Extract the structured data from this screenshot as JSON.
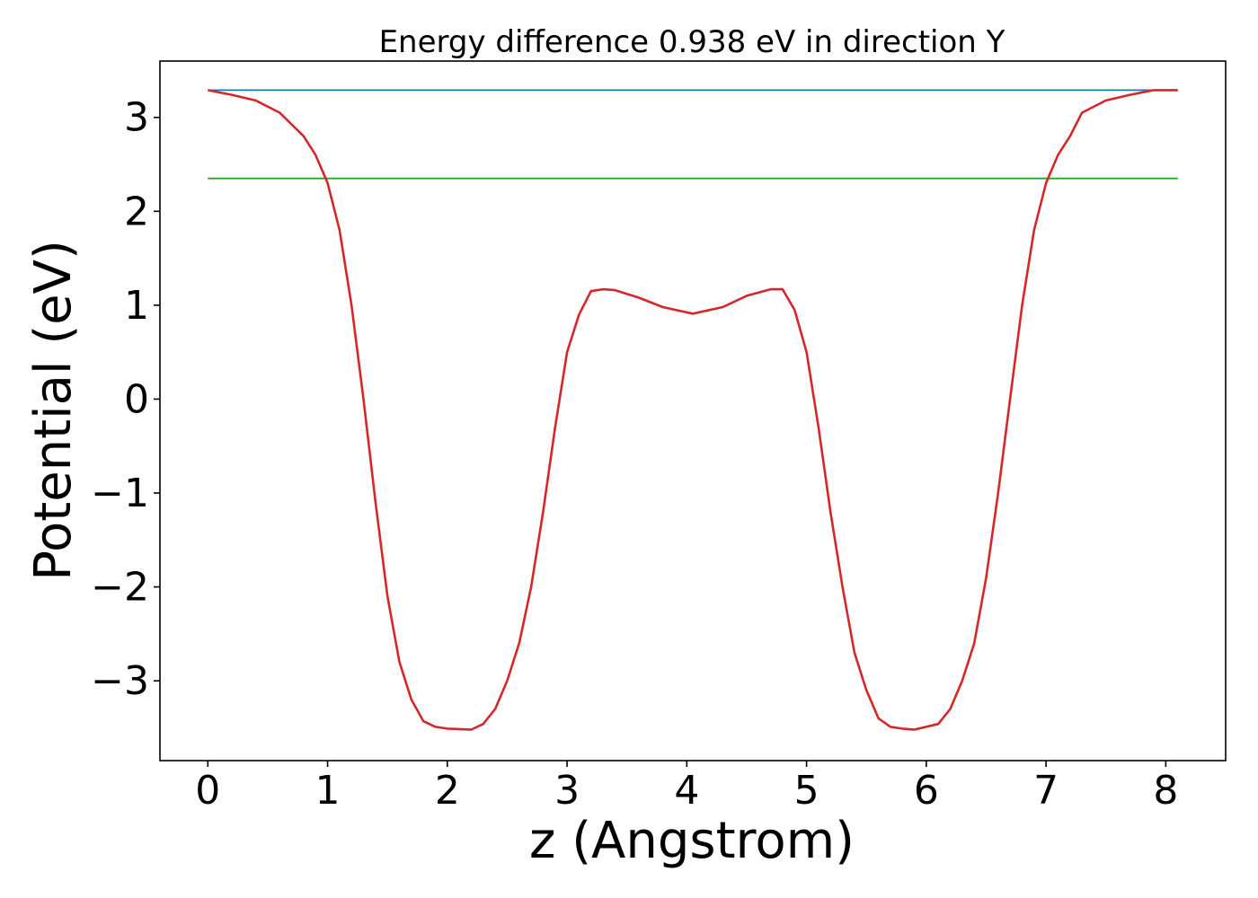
{
  "chart_data": {
    "type": "line",
    "title": "Energy difference 0.938 eV in direction Y",
    "xlabel": "z (Angstrom)",
    "ylabel": "Potential (eV)",
    "xlim": [
      -0.4,
      8.5
    ],
    "ylim": [
      -3.85,
      3.6
    ],
    "xticks": [
      0,
      1,
      2,
      3,
      4,
      5,
      6,
      7,
      8
    ],
    "xtick_labels": [
      "0",
      "1",
      "2",
      "3",
      "4",
      "5",
      "6",
      "7",
      "8"
    ],
    "yticks": [
      -3,
      -2,
      -1,
      0,
      1,
      2,
      3
    ],
    "ytick_labels": [
      "−3",
      "−2",
      "−1",
      "0",
      "1",
      "2",
      "3"
    ],
    "grid": false,
    "legend": "none",
    "series": [
      {
        "color": "#d62728",
        "x": [
          0,
          0.2,
          0.4,
          0.6,
          0.8,
          0.9,
          1.0,
          1.1,
          1.2,
          1.3,
          1.4,
          1.5,
          1.6,
          1.7,
          1.8,
          1.9,
          2.0,
          2.2,
          2.3,
          2.4,
          2.5,
          2.6,
          2.7,
          2.8,
          2.9,
          3.0,
          3.1,
          3.2,
          3.3,
          3.4,
          3.6,
          3.8,
          4.05,
          4.3,
          4.5,
          4.7,
          4.8,
          4.9,
          5.0,
          5.1,
          5.2,
          5.3,
          5.4,
          5.5,
          5.6,
          5.7,
          5.8,
          5.9,
          6.1,
          6.2,
          6.3,
          6.4,
          6.5,
          6.6,
          6.7,
          6.8,
          6.9,
          7.0,
          7.1,
          7.2,
          7.3,
          7.5,
          7.7,
          7.9,
          8.1
        ],
        "y": [
          3.29,
          3.24,
          3.18,
          3.05,
          2.8,
          2.6,
          2.3,
          1.8,
          1.0,
          0.0,
          -1.1,
          -2.1,
          -2.8,
          -3.2,
          -3.43,
          -3.49,
          -3.51,
          -3.52,
          -3.46,
          -3.3,
          -3.0,
          -2.6,
          -2.0,
          -1.2,
          -0.3,
          0.5,
          0.9,
          1.15,
          1.17,
          1.16,
          1.08,
          0.98,
          0.91,
          0.98,
          1.1,
          1.17,
          1.17,
          0.95,
          0.5,
          -0.3,
          -1.2,
          -2.0,
          -2.7,
          -3.1,
          -3.4,
          -3.49,
          -3.51,
          -3.52,
          -3.46,
          -3.3,
          -3.0,
          -2.6,
          -1.9,
          -1.0,
          0.0,
          1.0,
          1.8,
          2.3,
          2.6,
          2.8,
          3.05,
          3.18,
          3.24,
          3.29,
          3.29
        ]
      },
      {
        "color": "#1f77b4",
        "x": [
          0,
          8.1
        ],
        "y": [
          3.29,
          3.29
        ]
      },
      {
        "color": "#2ca02c",
        "x": [
          0,
          8.1
        ],
        "y": [
          2.35,
          2.35
        ]
      }
    ]
  }
}
